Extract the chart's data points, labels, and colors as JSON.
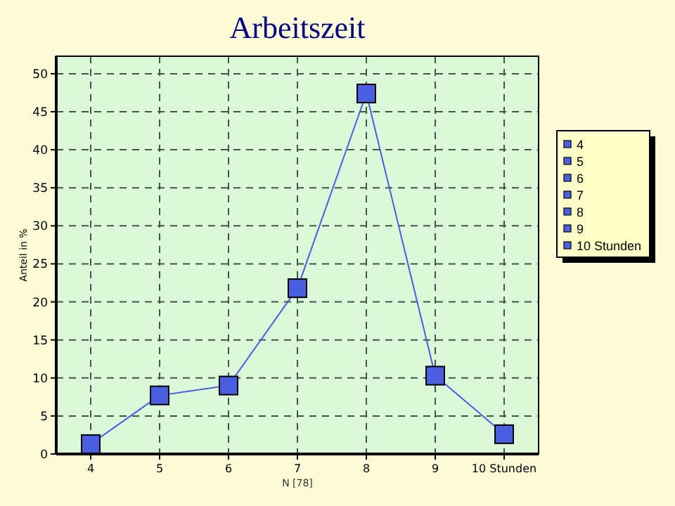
{
  "chart_data": {
    "type": "line",
    "title": "Arbeitszeit",
    "xlabel": "N [78]",
    "ylabel": "Anteil in %",
    "categories": [
      "4",
      "5",
      "6",
      "7",
      "8",
      "9",
      "10 Stunden"
    ],
    "series": [
      {
        "color": "#4a5fe0",
        "values": [
          1.3,
          7.7,
          9.0,
          21.8,
          47.4,
          10.3,
          2.6
        ]
      }
    ],
    "ylim": [
      0,
      52.3
    ],
    "yticks": [
      0,
      5,
      10,
      15,
      20,
      25,
      30,
      35,
      40,
      45,
      50
    ],
    "grid": true,
    "marker": "square",
    "line_style": "solid"
  }
}
